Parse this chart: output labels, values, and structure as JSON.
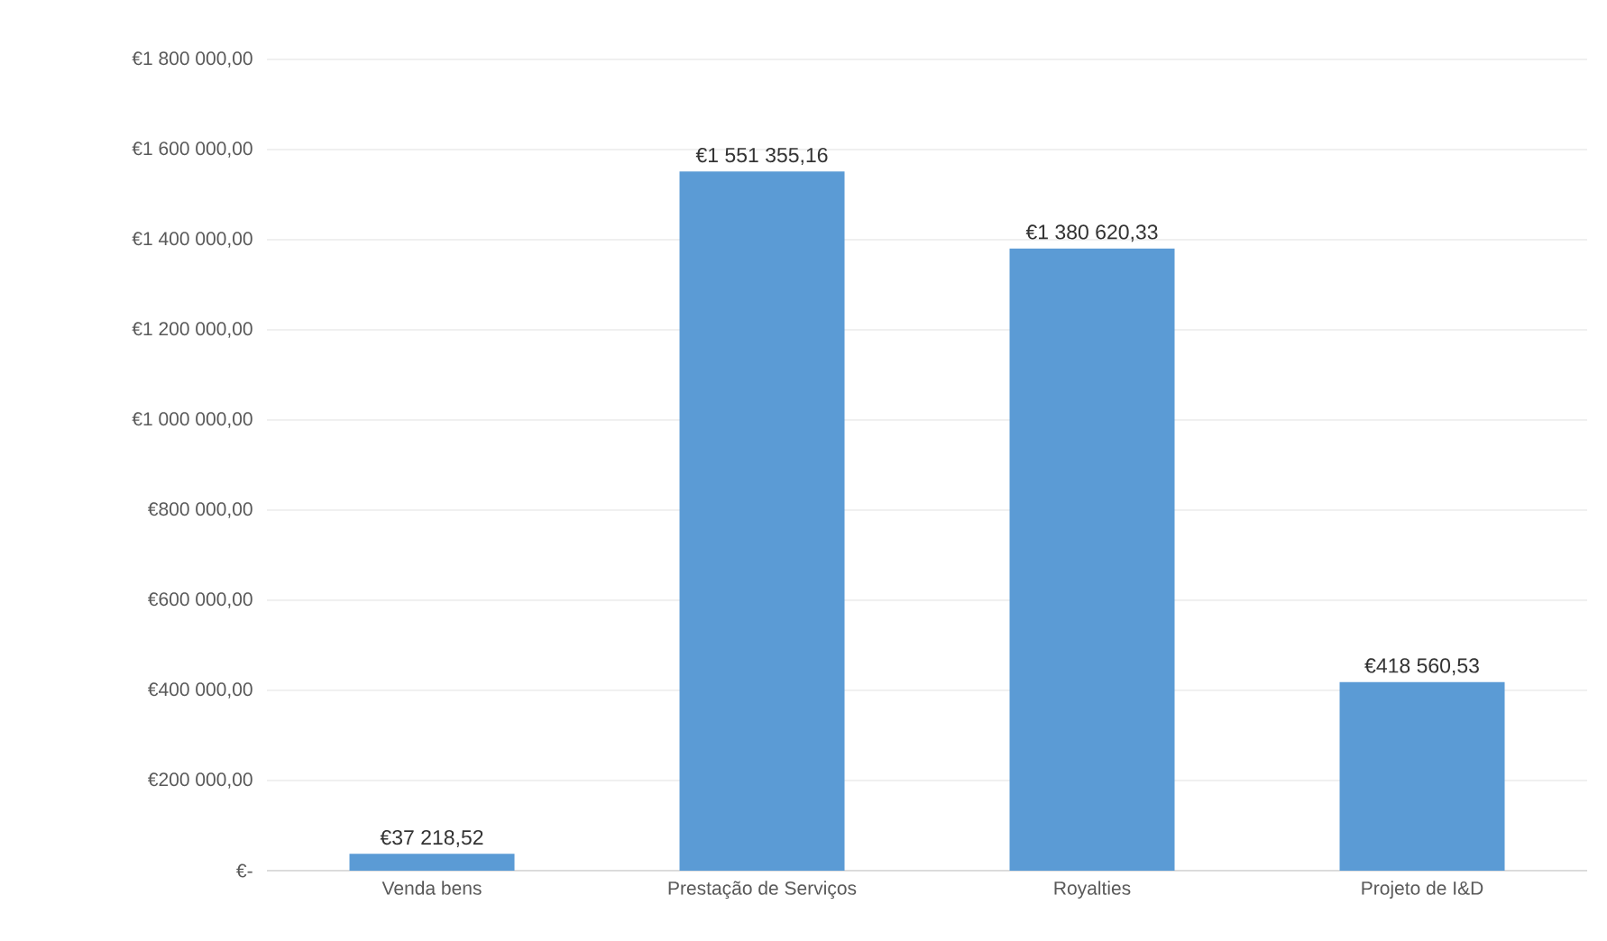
{
  "chart_data": {
    "type": "bar",
    "categories": [
      "Venda bens",
      "Prestação de Serviços",
      "Royalties",
      "Projeto de I&D"
    ],
    "values": [
      37218.52,
      1551355.16,
      1380620.33,
      418560.53
    ],
    "value_labels": [
      "€37 218,52",
      "€1 551 355,16",
      "€1 380 620,33",
      "€418 560,53"
    ],
    "color": "#5b9bd5",
    "ylim": [
      0,
      1800000
    ],
    "yticks": [
      {
        "value": 0,
        "label": "€-"
      },
      {
        "value": 200000,
        "label": "€200 000,00"
      },
      {
        "value": 400000,
        "label": "€400 000,00"
      },
      {
        "value": 600000,
        "label": "€600 000,00"
      },
      {
        "value": 800000,
        "label": "€800 000,00"
      },
      {
        "value": 1000000,
        "label": "€1 000 000,00"
      },
      {
        "value": 1200000,
        "label": "€1 200 000,00"
      },
      {
        "value": 1400000,
        "label": "€1 400 000,00"
      },
      {
        "value": 1600000,
        "label": "€1 600 000,00"
      },
      {
        "value": 1800000,
        "label": "€1 800 000,00"
      }
    ],
    "grid": "y"
  }
}
